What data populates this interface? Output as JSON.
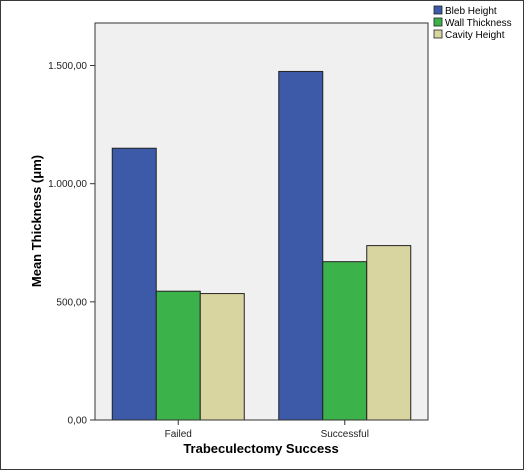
{
  "chart_data": {
    "type": "bar",
    "categories": [
      "Failed",
      "Successful"
    ],
    "series": [
      {
        "name": "Bleb Height",
        "values": [
          1150,
          1475
        ],
        "color": "#3d5aa8"
      },
      {
        "name": "Wall Thickness",
        "values": [
          545,
          670
        ],
        "color": "#3cb24a"
      },
      {
        "name": "Cavity Height",
        "values": [
          535,
          738
        ],
        "color": "#d9d5a0"
      }
    ],
    "xlabel": "Trabeculectomy Success",
    "ylabel": "Mean Thickness (μm)",
    "ylim": [
      0,
      1680
    ],
    "yticks": [
      0,
      500,
      1000,
      1500
    ],
    "ytick_labels": [
      "0,00",
      "500,00",
      "1.000,00",
      "1.500,00"
    ],
    "grid": false,
    "legend_position": "top-right",
    "plot_background": "#f0f0f0"
  }
}
